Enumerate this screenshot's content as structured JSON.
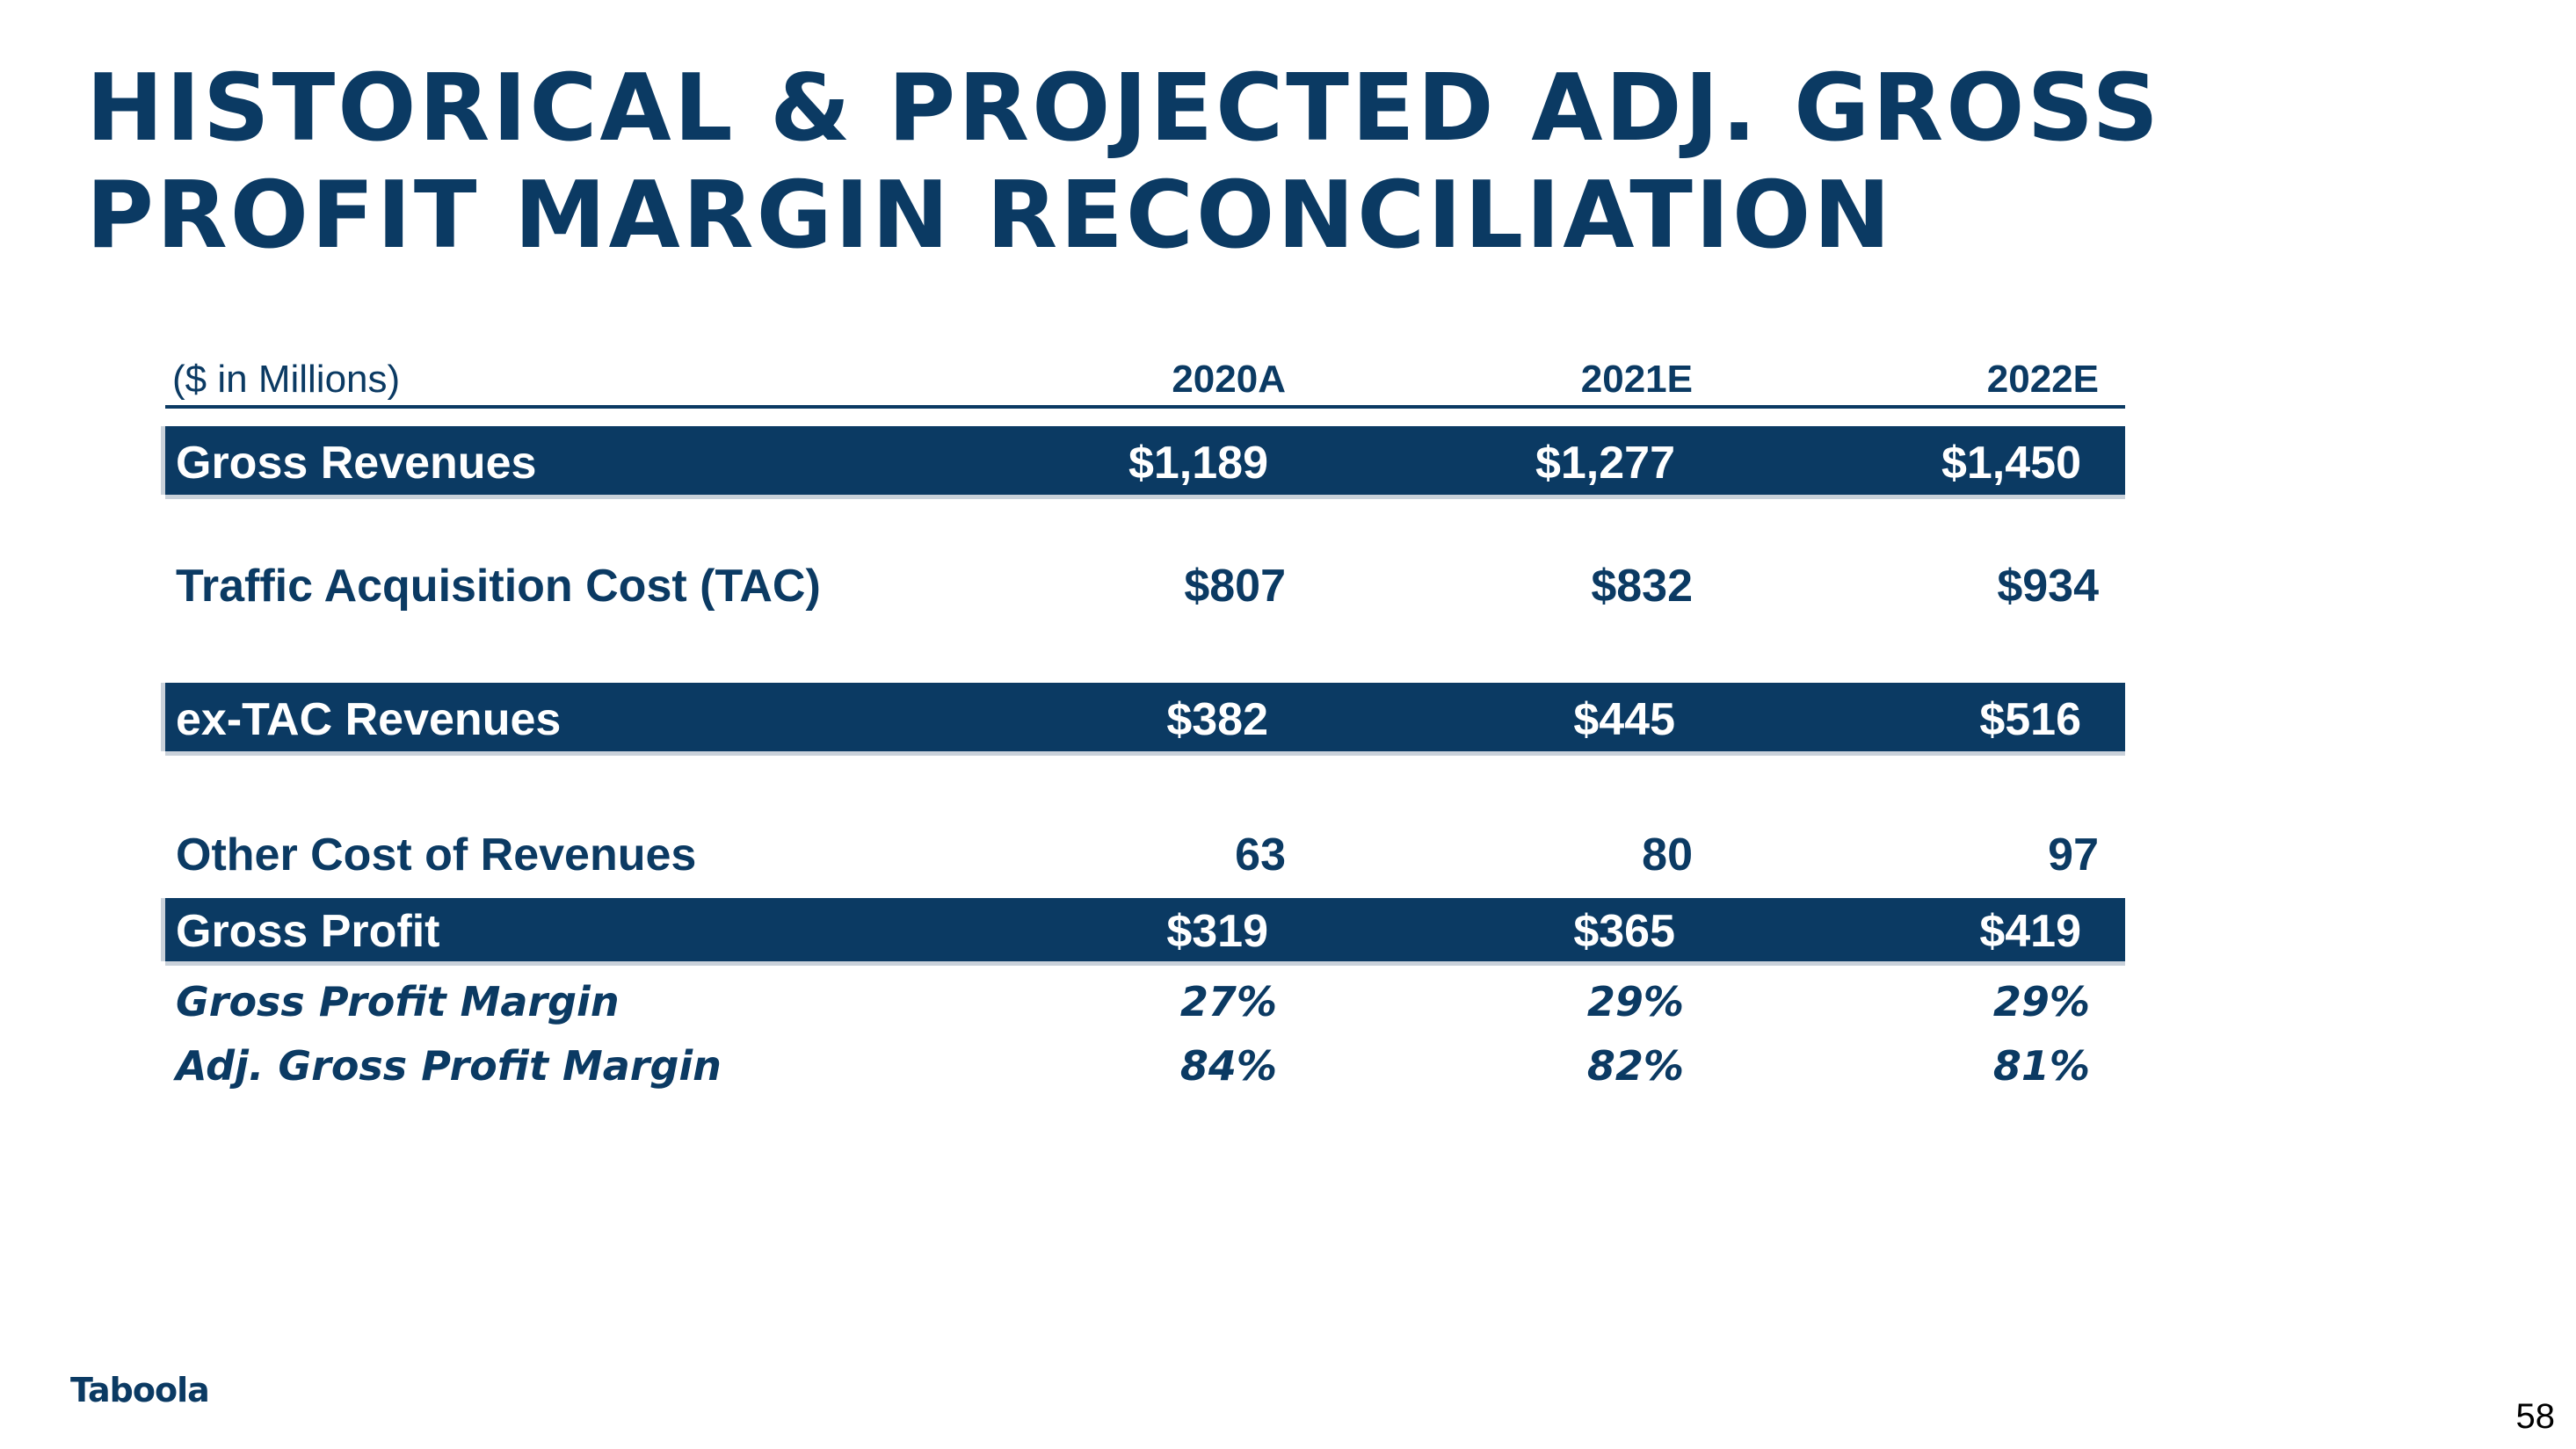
{
  "slide": {
    "title_line1": "HISTORICAL & PROJECTED ADJ. GROSS",
    "title_line2": "PROFIT MARGIN RECONCILIATION",
    "logo_text": "Taboola",
    "page_number": "58"
  },
  "table": {
    "units_label": "($ in Millions)",
    "columns": [
      "2020A",
      "2021E",
      "2022E"
    ],
    "rows": [
      {
        "label": "Gross Revenues",
        "values": [
          "$1,189",
          "$1,277",
          "$1,450"
        ],
        "style": "band"
      },
      {
        "label": "Traffic Acquisition Cost (TAC)",
        "values": [
          "$807",
          "$832",
          "$934"
        ],
        "style": "plain"
      },
      {
        "label": "ex-TAC Revenues",
        "values": [
          "$382",
          "$445",
          "$516"
        ],
        "style": "band"
      },
      {
        "label": "Other Cost of Revenues",
        "values": [
          "63",
          "80",
          "97"
        ],
        "style": "plain"
      },
      {
        "label": "Gross Profit",
        "values": [
          "$319",
          "$365",
          "$419"
        ],
        "style": "band"
      },
      {
        "label": "Gross Profit Margin",
        "values": [
          "27%",
          "29%",
          "29%"
        ],
        "style": "italic"
      },
      {
        "label": "Adj. Gross Profit Margin",
        "values": [
          "84%",
          "82%",
          "81%"
        ],
        "style": "italic"
      }
    ]
  }
}
